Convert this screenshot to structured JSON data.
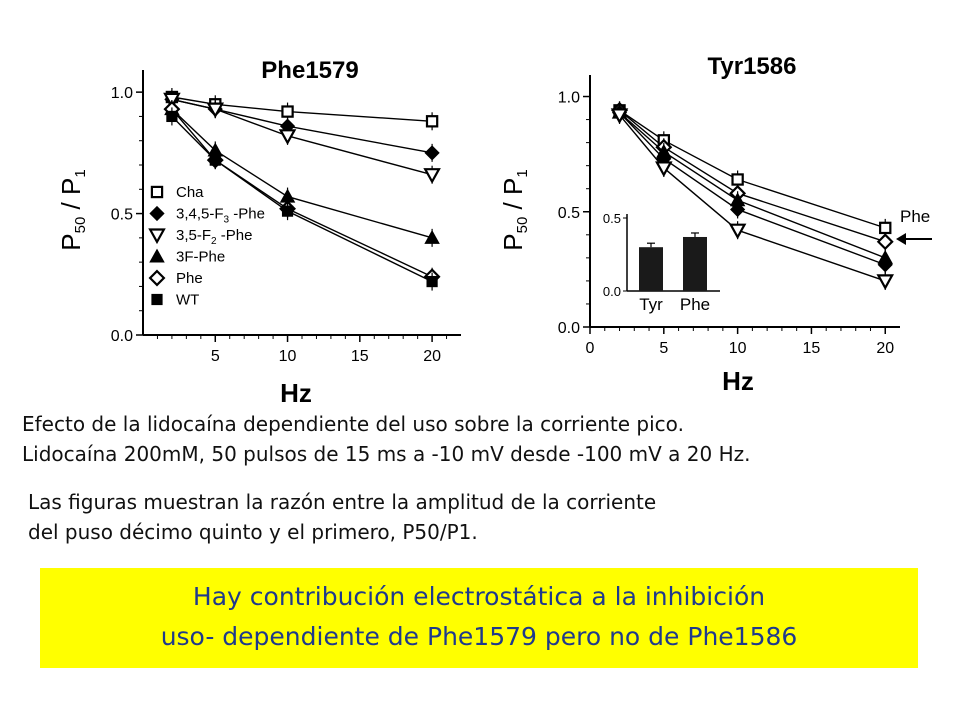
{
  "chart_data": [
    {
      "type": "line",
      "title": "Phe1579",
      "xlabel": "Hz",
      "ylabel": "P50 / P1",
      "ylabel_main": "P",
      "ylabel_sub1": "50",
      "ylabel_slash": " / ",
      "ylabel_main2": "P",
      "ylabel_sub2": "1",
      "xlim": [
        0,
        22
      ],
      "ylim": [
        0,
        1.05
      ],
      "xticks": [
        5,
        10,
        15,
        20
      ],
      "yticks": [
        0.0,
        0.5,
        1.0
      ],
      "ytick_labels": [
        "0.0",
        "0.5",
        "1.0"
      ],
      "legend_position": "lower-left",
      "legend": [
        {
          "label": "Cha",
          "marker": "square-open"
        },
        {
          "label": "3,4,5-F3 -Phe",
          "marker": "diamond-filled"
        },
        {
          "label": "3,5-F2 -Phe",
          "marker": "triangle-down-open"
        },
        {
          "label": "3F-Phe",
          "marker": "triangle-up-filled"
        },
        {
          "label": "Phe",
          "marker": "diamond-open"
        },
        {
          "label": "WT",
          "marker": "square-filled"
        }
      ],
      "series": [
        {
          "name": "Cha",
          "marker": "square-open",
          "x": [
            2,
            5,
            10,
            20
          ],
          "y": [
            0.98,
            0.95,
            0.92,
            0.88
          ]
        },
        {
          "name": "3,4,5-F3 -Phe",
          "marker": "diamond-filled",
          "x": [
            2,
            5,
            10,
            20
          ],
          "y": [
            0.97,
            0.93,
            0.86,
            0.75
          ]
        },
        {
          "name": "3,5-F2 -Phe",
          "marker": "triangle-down-open",
          "x": [
            2,
            5,
            10,
            20
          ],
          "y": [
            0.97,
            0.93,
            0.82,
            0.66
          ]
        },
        {
          "name": "3F-Phe",
          "marker": "triangle-up-filled",
          "x": [
            2,
            5,
            10,
            20
          ],
          "y": [
            0.93,
            0.76,
            0.57,
            0.4
          ]
        },
        {
          "name": "Phe",
          "marker": "diamond-open",
          "x": [
            2,
            5,
            10,
            20
          ],
          "y": [
            0.93,
            0.72,
            0.52,
            0.24
          ]
        },
        {
          "name": "WT",
          "marker": "square-filled",
          "x": [
            2,
            5,
            10,
            20
          ],
          "y": [
            0.9,
            0.72,
            0.51,
            0.22
          ]
        }
      ]
    },
    {
      "type": "line",
      "title": "Tyr1586",
      "xlabel": "Hz",
      "ylabel": "P50 / P1",
      "ylabel_main": "P",
      "ylabel_sub1": "50",
      "ylabel_slash": " / ",
      "ylabel_main2": "P",
      "ylabel_sub2": "1",
      "xlim": [
        0,
        21
      ],
      "ylim": [
        0,
        1.05
      ],
      "xticks": [
        0,
        5,
        10,
        15,
        20
      ],
      "yticks": [
        0.0,
        0.5,
        1.0
      ],
      "ytick_labels": [
        "0.0",
        "0.5",
        "1.0"
      ],
      "annotation": "Phe",
      "series": [
        {
          "marker": "square-open",
          "x": [
            2,
            5,
            10,
            20
          ],
          "y": [
            0.94,
            0.81,
            0.64,
            0.43
          ]
        },
        {
          "marker": "diamond-open",
          "x": [
            2,
            5,
            10,
            20
          ],
          "y": [
            0.94,
            0.78,
            0.58,
            0.37
          ]
        },
        {
          "marker": "triangle-up-filled",
          "x": [
            2,
            5,
            10,
            20
          ],
          "y": [
            0.93,
            0.76,
            0.55,
            0.3
          ]
        },
        {
          "marker": "diamond-filled",
          "x": [
            2,
            5,
            10,
            20
          ],
          "y": [
            0.93,
            0.73,
            0.51,
            0.27
          ]
        },
        {
          "marker": "triangle-down-open",
          "x": [
            2,
            5,
            10,
            20
          ],
          "y": [
            0.92,
            0.69,
            0.42,
            0.2
          ]
        }
      ]
    },
    {
      "type": "bar",
      "categories": [
        "Tyr",
        "Phe"
      ],
      "values": [
        0.3,
        0.37
      ],
      "ylim": [
        0,
        0.5
      ],
      "yticks": [
        0.0,
        0.5
      ],
      "ytick_labels": [
        "0.0",
        "0.5"
      ]
    }
  ],
  "caption": {
    "line1": "Efecto de la lidocaína dependiente del uso sobre la corriente pico.",
    "line2": "Lidocaína 200mM, 50 pulsos de 15 ms a -10 mV desde -100 mV a 20 Hz.",
    "line3": "Las figuras muestran la razón entre la amplitud de la corriente",
    "line4": "del puso décimo quinto y el primero, P50/P1."
  },
  "banner": {
    "line1": "Hay contribución electrostática a la inhibición",
    "line2": "uso- dependiente de Phe1579 pero no de Phe1586",
    "background": "#ffff00",
    "text_color": "#1f3a8c"
  }
}
